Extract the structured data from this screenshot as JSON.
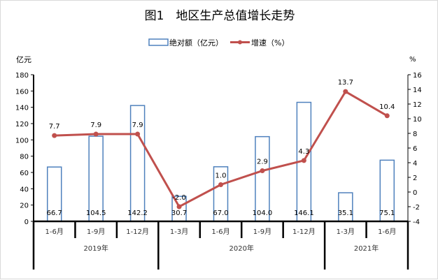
{
  "chart_data": {
    "type": "bar+line",
    "title": "图1　地区生产总值增长走势",
    "legend": [
      "绝对额（亿元）",
      "增速（%）"
    ],
    "legend_position": "top",
    "left_axis_label": "亿元",
    "right_axis_label": "%",
    "left_ylim": [
      0,
      180
    ],
    "left_ticks": [
      0,
      20,
      40,
      60,
      80,
      100,
      120,
      140,
      160,
      180
    ],
    "right_ylim": [
      -4,
      16
    ],
    "right_ticks": [
      -4,
      -2,
      0,
      2,
      4,
      6,
      8,
      10,
      12,
      14,
      16
    ],
    "categories": [
      "1-6月",
      "1-9月",
      "1-12月",
      "1-3月",
      "1-6月",
      "1-9月",
      "1-12月",
      "1-3月",
      "1-6月"
    ],
    "groups": [
      {
        "label": "2019年",
        "count": 3
      },
      {
        "label": "2020年",
        "count": 4
      },
      {
        "label": "2021年",
        "count": 2
      }
    ],
    "series": [
      {
        "name": "绝对额（亿元）",
        "type": "bar",
        "axis": "left",
        "color": "#4F81BD",
        "values": [
          66.7,
          104.5,
          142.2,
          30.7,
          67.0,
          104.0,
          146.1,
          35.1,
          75.1
        ],
        "labels": [
          "66.7",
          "104.5",
          "142.2",
          "30.7",
          "67.0",
          "104.0",
          "146.1",
          "35.1",
          "75.1"
        ]
      },
      {
        "name": "增速（%）",
        "type": "line",
        "axis": "right",
        "color": "#C0504D",
        "values": [
          7.7,
          7.9,
          7.9,
          -2.0,
          1.0,
          2.9,
          4.3,
          13.7,
          10.4
        ],
        "labels": [
          "7.7",
          "7.9",
          "7.9",
          "-2.0",
          "1.0",
          "2.9",
          "4.3",
          "13.7",
          "10.4"
        ]
      }
    ]
  }
}
